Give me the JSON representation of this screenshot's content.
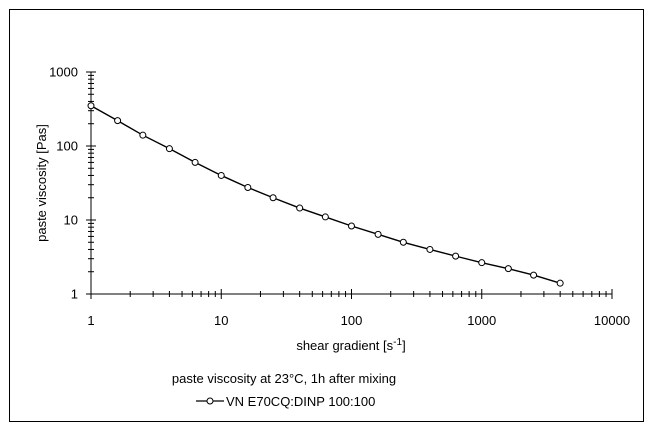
{
  "chart_data": {
    "type": "line",
    "x_scale": "log",
    "y_scale": "log",
    "xlim": [
      1,
      10000
    ],
    "ylim": [
      1,
      1000
    ],
    "x_ticks": [
      "1",
      "10",
      "100",
      "1000",
      "10000"
    ],
    "y_ticks": [
      "1",
      "10",
      "100",
      "1000"
    ],
    "xlabel": {
      "text": "shear gradient  [s",
      "sup": "-1",
      "tail": "]"
    },
    "ylabel": "paste viscosity   [Pas]",
    "subtitle": "paste viscosity at 23°C, 1h after mixing",
    "grid": false,
    "legend_position": "bottom-center",
    "series": [
      {
        "name": "VN E70CQ:DINP  100:100",
        "color": "#000000",
        "marker": "open-circle",
        "x": [
          1,
          1.6,
          2.5,
          4,
          6.3,
          10,
          16,
          25,
          40,
          63,
          100,
          160,
          250,
          400,
          630,
          1000,
          1600,
          2500,
          4000
        ],
        "y": [
          350,
          220,
          140,
          92,
          60,
          40,
          27.5,
          20,
          14.5,
          11,
          8.3,
          6.4,
          5.0,
          4.0,
          3.25,
          2.65,
          2.2,
          1.8,
          1.4
        ]
      }
    ]
  }
}
